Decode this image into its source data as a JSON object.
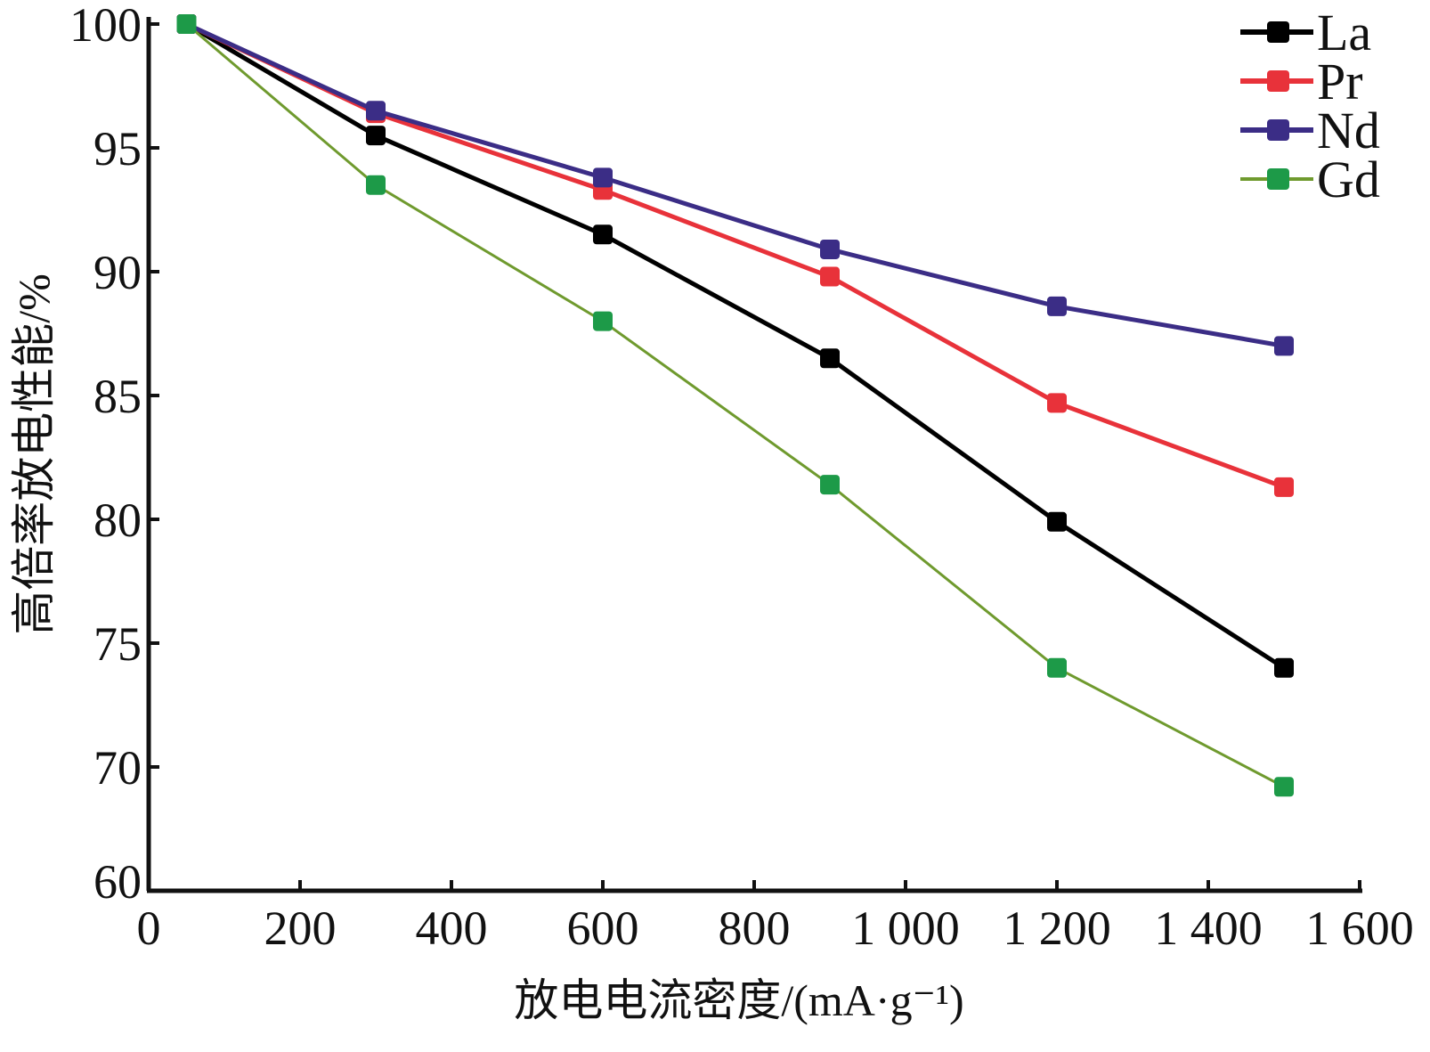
{
  "chart_data": {
    "type": "line",
    "title": "",
    "xlabel": "放电电流密度/(mA·g⁻¹)",
    "ylabel": "高倍率放电性能/%",
    "xlim": [
      0,
      1600
    ],
    "ylim": [
      65,
      100
    ],
    "y_axis_break_label": "60",
    "x_ticks": [
      0,
      200,
      400,
      600,
      800,
      1000,
      1200,
      1400,
      1600
    ],
    "x_tick_labels": [
      "0",
      "200",
      "400",
      "600",
      "800",
      "1 000",
      "1 200",
      "1 400",
      "1 600"
    ],
    "y_ticks": [
      70,
      75,
      80,
      85,
      90,
      95,
      100
    ],
    "y_tick_labels": [
      "70",
      "75",
      "80",
      "85",
      "90",
      "95",
      "100"
    ],
    "grid": false,
    "legend_position": "top-right",
    "x": [
      50,
      300,
      600,
      900,
      1200,
      1500
    ],
    "series": [
      {
        "name": "La",
        "color": "#000000",
        "marker_color": "#000000",
        "values": [
          100,
          95.5,
          91.5,
          86.5,
          79.9,
          74.0
        ]
      },
      {
        "name": "Pr",
        "color": "#e8323a",
        "marker_color": "#e8323a",
        "values": [
          100,
          96.4,
          93.3,
          89.8,
          84.7,
          81.3
        ]
      },
      {
        "name": "Nd",
        "color": "#3b2d86",
        "marker_color": "#3b2d86",
        "values": [
          100,
          96.5,
          93.8,
          90.9,
          88.6,
          87.0
        ]
      },
      {
        "name": "Gd",
        "color": "#6f9a2e",
        "marker_color": "#1d9a48",
        "values": [
          100,
          93.5,
          88.0,
          81.4,
          74.0,
          69.2
        ]
      }
    ]
  }
}
